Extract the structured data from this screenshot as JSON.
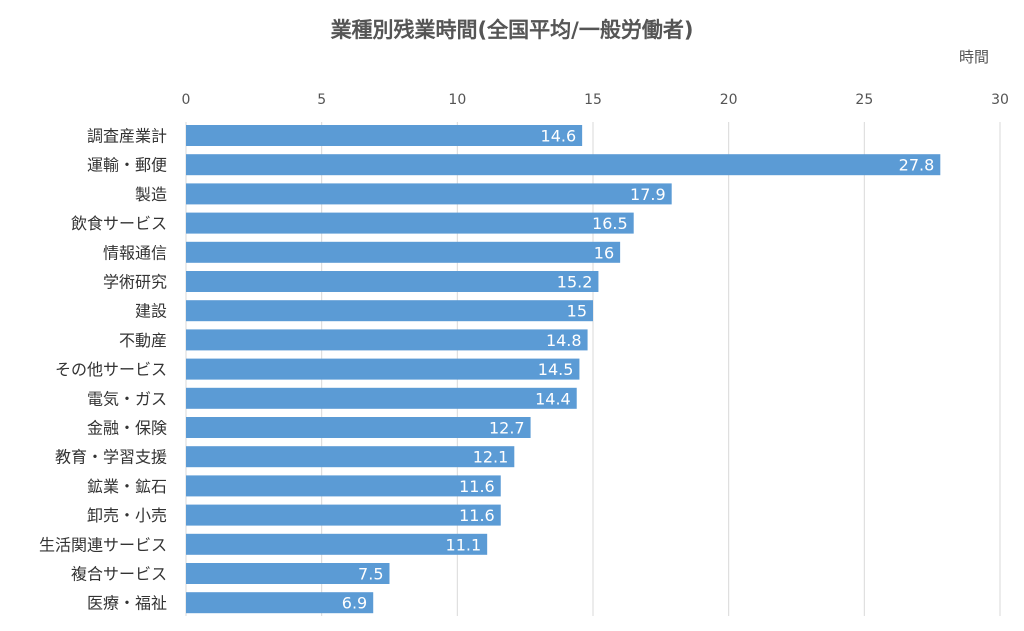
{
  "chart_data": {
    "type": "bar",
    "orientation": "horizontal",
    "title": "業種別残業時間(全国平均/一般労働者)",
    "unit": "時間",
    "categories": [
      "調査産業計",
      "運輸・郵便",
      "製造",
      "飲食サービス",
      "情報通信",
      "学術研究",
      "建設",
      "不動産",
      "その他サービス",
      "電気・ガス",
      "金融・保険",
      "教育・学習支援",
      "鉱業・鉱石",
      "卸売・小売",
      "生活関連サービス",
      "複合サービス",
      "医療・福祉"
    ],
    "values": [
      14.6,
      27.8,
      17.9,
      16.5,
      16,
      15.2,
      15,
      14.8,
      14.5,
      14.4,
      12.7,
      12.1,
      11.6,
      11.6,
      11.1,
      7.5,
      6.9
    ],
    "xlim": [
      0,
      30
    ],
    "xticks": [
      0,
      5,
      10,
      15,
      20,
      25,
      30
    ],
    "x_axis_position": "top",
    "grid": true,
    "data_labels": true,
    "bar_color": "#5b9bd5",
    "grid_color": "#d9d9d9",
    "label_color": "#ffffff"
  }
}
